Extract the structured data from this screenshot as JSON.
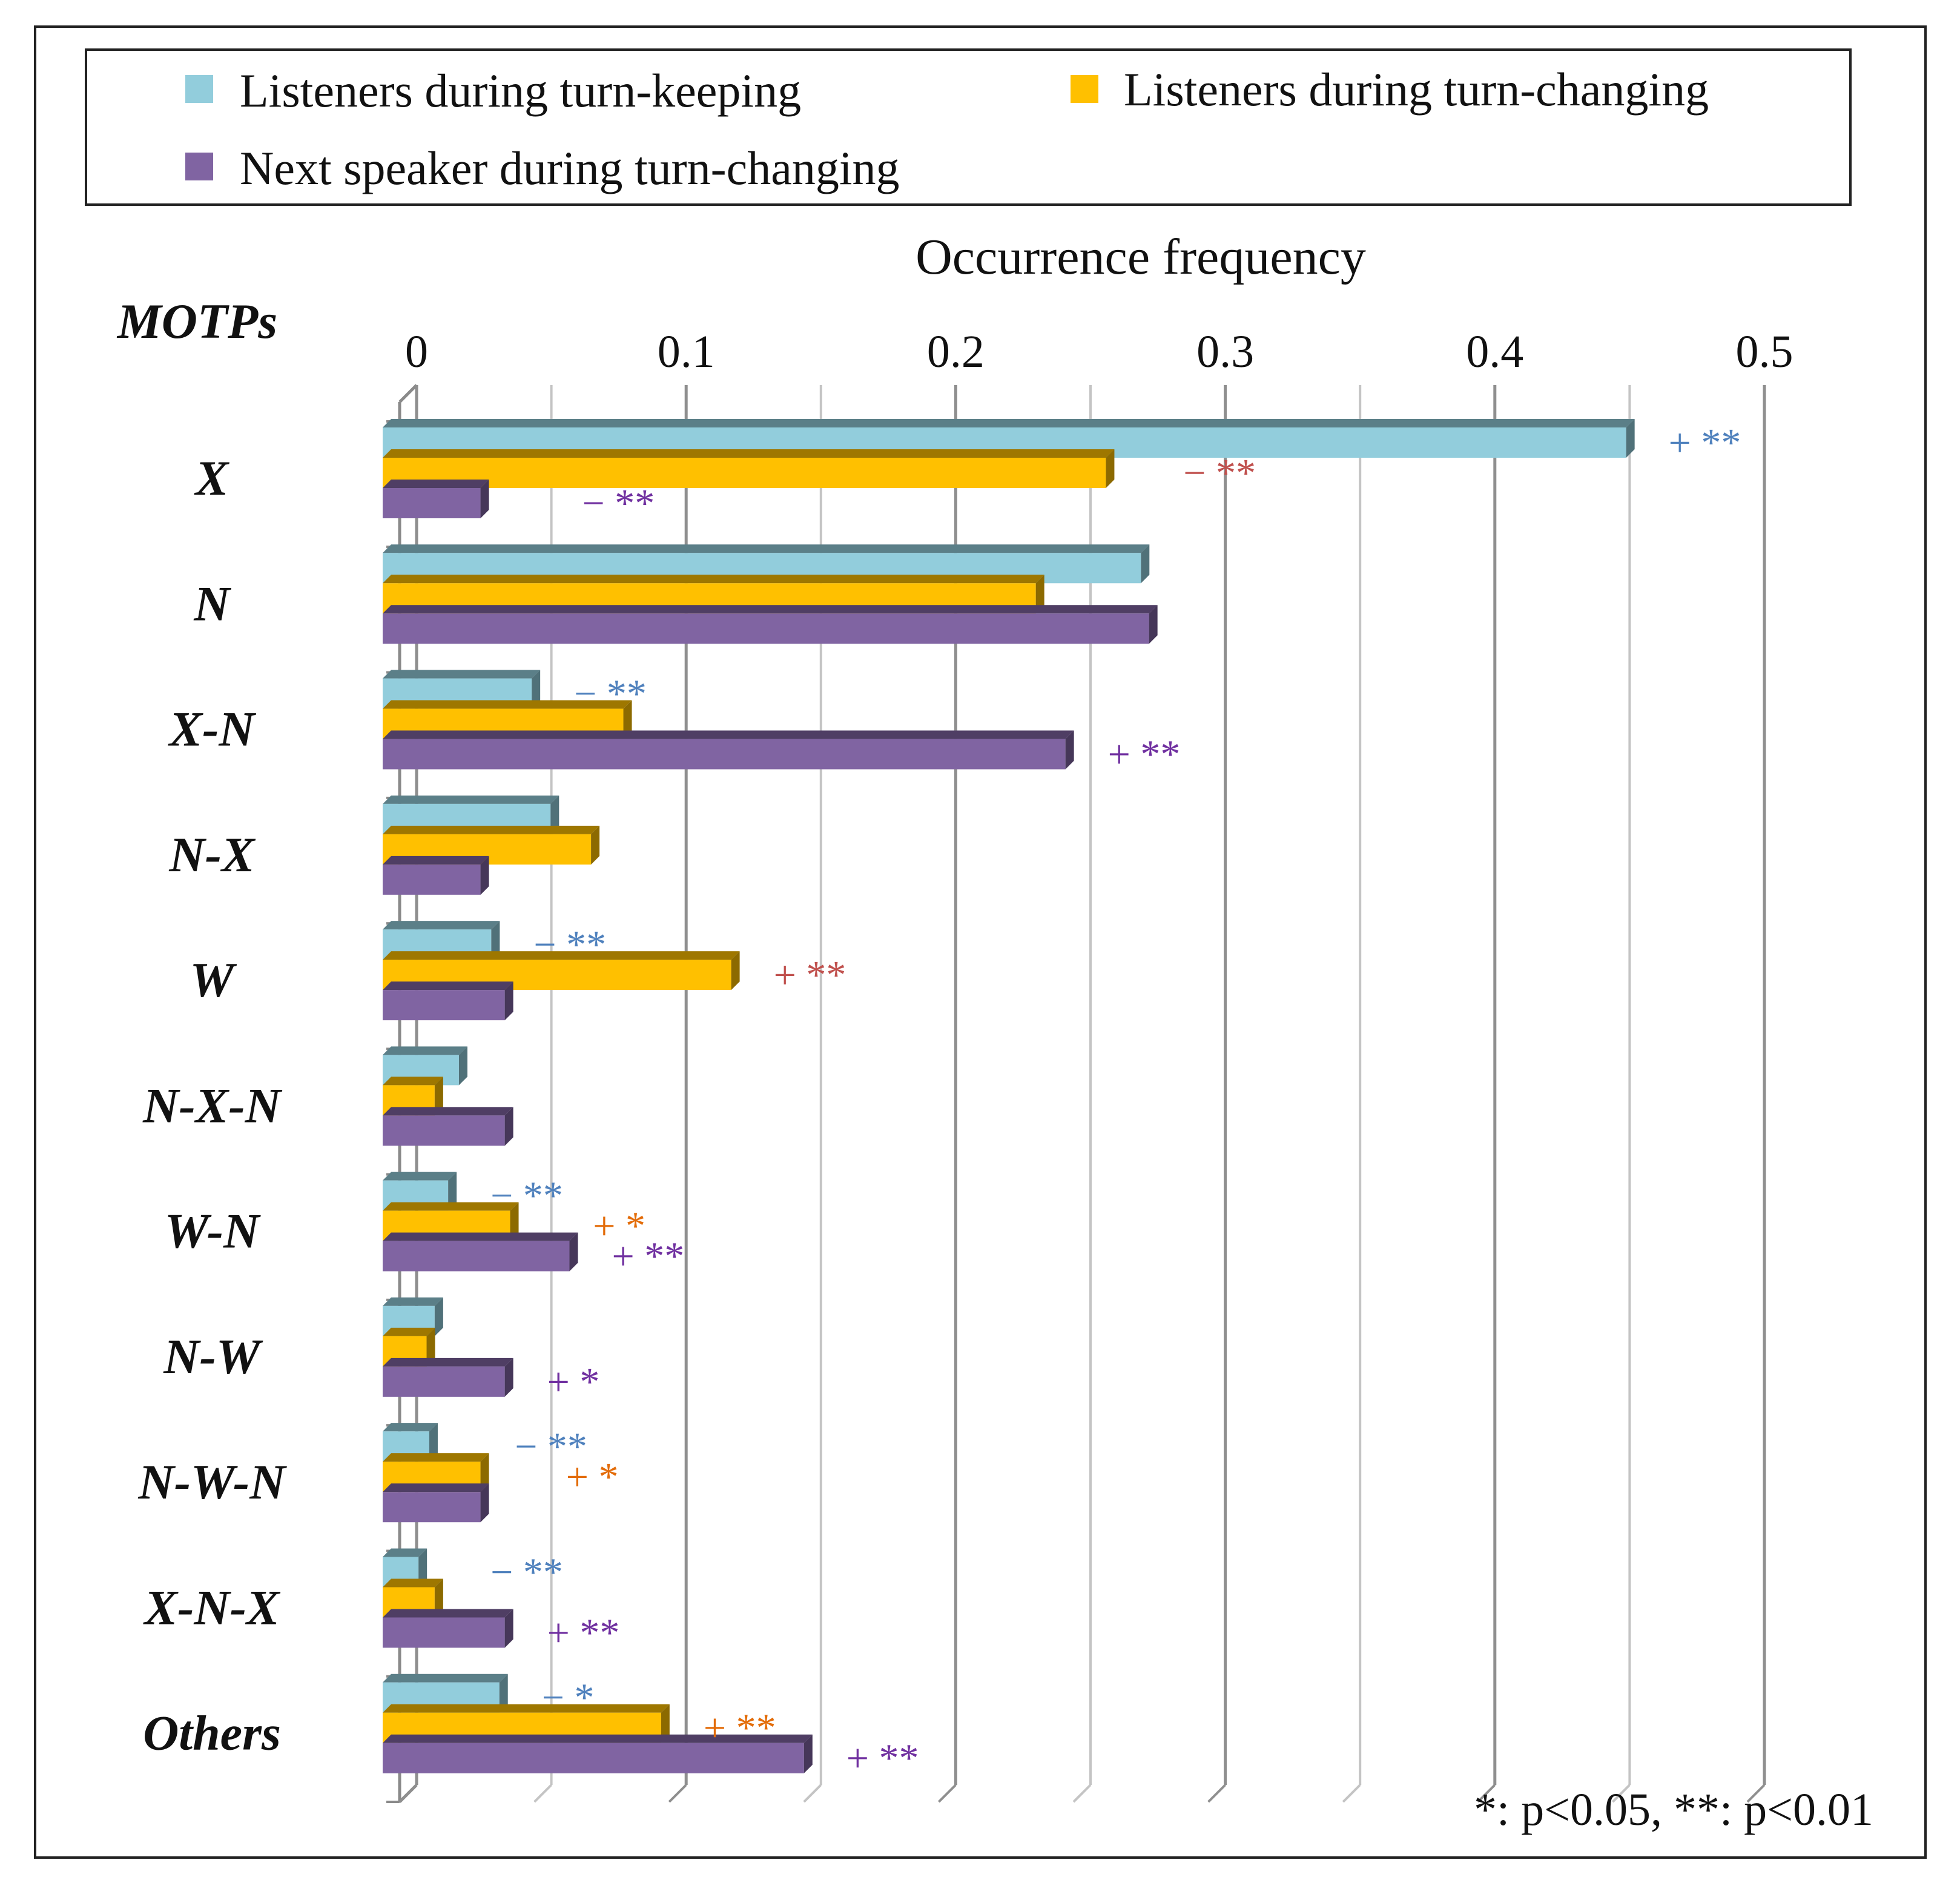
{
  "chart_data": {
    "type": "bar",
    "orientation": "horizontal",
    "style": "3d",
    "title": "",
    "xlabel": "Occurrence frequency",
    "ylabel": "MOTPs",
    "xlim": [
      0,
      0.5
    ],
    "xticks": [
      "0",
      "0.1",
      "0.2",
      "0.3",
      "0.4",
      "0.5"
    ],
    "grid": true,
    "legend_position": "top",
    "categories": [
      "X",
      "N",
      "X-N",
      "N-X",
      "W",
      "N-X-N",
      "W-N",
      "N-W",
      "N-W-N",
      "X-N-X",
      "Others"
    ],
    "series": [
      {
        "name": "Listeners during turn-keeping",
        "color": "#92CDDC",
        "values": [
          0.455,
          0.275,
          0.049,
          0.056,
          0.034,
          0.022,
          0.018,
          0.013,
          0.011,
          0.007,
          0.037
        ]
      },
      {
        "name": "Listeners during turn-changing",
        "color": "#FFC000",
        "values": [
          0.262,
          0.236,
          0.083,
          0.071,
          0.123,
          0.013,
          0.041,
          0.01,
          0.03,
          0.013,
          0.097
        ]
      },
      {
        "name": "Next speaker during turn-changing",
        "color": "#8064A2",
        "values": [
          0.03,
          0.278,
          0.247,
          0.03,
          0.039,
          0.039,
          0.063,
          0.039,
          0.03,
          0.039,
          0.15
        ]
      }
    ],
    "annotations": [
      {
        "category": "X",
        "series": 0,
        "sign": "+",
        "stars": "**",
        "color": "#4F81BD"
      },
      {
        "category": "X",
        "series": 1,
        "sign": "−",
        "stars": "**",
        "color": "#C0504D",
        "offset": 0.013
      },
      {
        "category": "X",
        "series": 2,
        "sign": "−",
        "stars": "**",
        "color": "#7030A0",
        "offset": 0.022
      },
      {
        "category": "X-N",
        "series": 0,
        "sign": "−",
        "stars": "**",
        "color": "#4F81BD"
      },
      {
        "category": "X-N",
        "series": 2,
        "sign": "+",
        "stars": "**",
        "color": "#7030A0"
      },
      {
        "category": "W",
        "series": 0,
        "sign": "−",
        "stars": "**",
        "color": "#4F81BD"
      },
      {
        "category": "W",
        "series": 1,
        "sign": "+",
        "stars": "**",
        "color": "#C0504D"
      },
      {
        "category": "W-N",
        "series": 0,
        "sign": "−",
        "stars": "**",
        "color": "#4F81BD"
      },
      {
        "category": "W-N",
        "series": 1,
        "sign": "+",
        "stars": "*",
        "color": "#E36C09",
        "offset": 0.015
      },
      {
        "category": "W-N",
        "series": 2,
        "sign": "+",
        "stars": "**",
        "color": "#7030A0"
      },
      {
        "category": "N-W",
        "series": 2,
        "sign": "+",
        "stars": "*",
        "color": "#7030A0"
      },
      {
        "category": "N-W-N",
        "series": 0,
        "sign": "−",
        "stars": "**",
        "color": "#4F81BD",
        "offset": 0.016
      },
      {
        "category": "N-W-N",
        "series": 1,
        "sign": "+",
        "stars": "*",
        "color": "#E36C09",
        "offset": 0.016
      },
      {
        "category": "X-N-X",
        "series": 0,
        "sign": "−",
        "stars": "**",
        "color": "#4F81BD",
        "offset": 0.011
      },
      {
        "category": "X-N-X",
        "series": 2,
        "sign": "+",
        "stars": "**",
        "color": "#7030A0"
      },
      {
        "category": "Others",
        "series": 0,
        "sign": "−",
        "stars": "*",
        "color": "#4F81BD"
      },
      {
        "category": "Others",
        "series": 1,
        "sign": "+",
        "stars": "**",
        "color": "#E36C09"
      },
      {
        "category": "Others",
        "series": 2,
        "sign": "+",
        "stars": "**",
        "color": "#7030A0"
      }
    ],
    "note": "*: p<0.05, **: p<0.01"
  }
}
